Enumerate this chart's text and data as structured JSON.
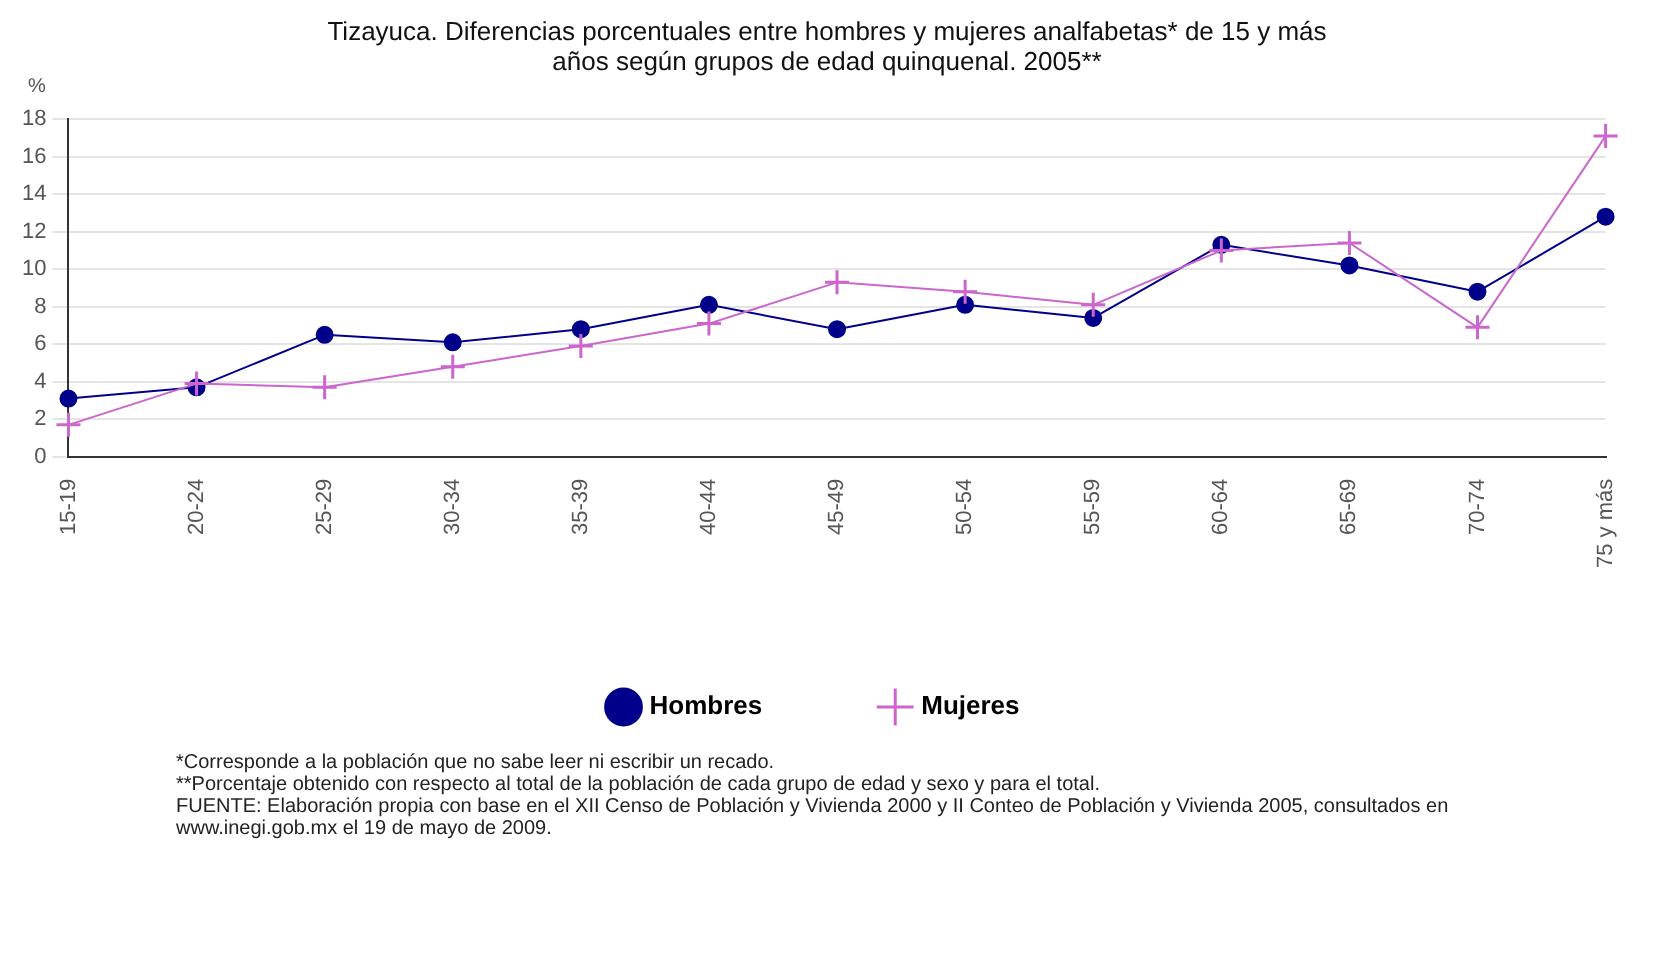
{
  "chart_data": {
    "type": "line",
    "title": "Tizayuca. Diferencias porcentuales entre hombres y mujeres analfabetas* de 15 y más años según grupos de edad quinquenal. 2005**",
    "ylabel": "%",
    "categories": [
      "15-19",
      "20-24",
      "25-29",
      "30-34",
      "35-39",
      "40-44",
      "45-49",
      "50-54",
      "55-59",
      "60-64",
      "65-69",
      "70-74",
      "75 y más"
    ],
    "series": [
      {
        "name": "Hombres",
        "color": "#00008b",
        "marker": "circle",
        "values": [
          3.1,
          3.7,
          6.5,
          6.1,
          6.8,
          8.1,
          6.8,
          8.1,
          7.4,
          11.3,
          10.2,
          8.8,
          12.8
        ]
      },
      {
        "name": "Mujeres",
        "color": "#cc66cc",
        "marker": "cross",
        "values": [
          1.7,
          3.9,
          3.7,
          4.8,
          5.9,
          7.1,
          9.3,
          8.8,
          8.1,
          11.0,
          11.4,
          6.9,
          17.1
        ]
      }
    ],
    "ylim": [
      0,
      18
    ],
    "yticks": [
      0,
      2,
      4,
      6,
      8,
      10,
      12,
      14,
      16,
      18
    ],
    "grid": "y",
    "legend": "bottom",
    "annotations": [
      "*Corresponde a la población que no sabe leer ni escribir un recado.",
      "**Porcentaje obtenido con respecto al total de la población de cada grupo de edad y sexo y para el total.",
      "FUENTE: Elaboración propia con base en el XII Censo de Población y Vivienda 2000 y II Conteo de Población y Vivienda 2005, consultados en www.inegi.gob.mx el 19 de mayo de 2009."
    ]
  }
}
